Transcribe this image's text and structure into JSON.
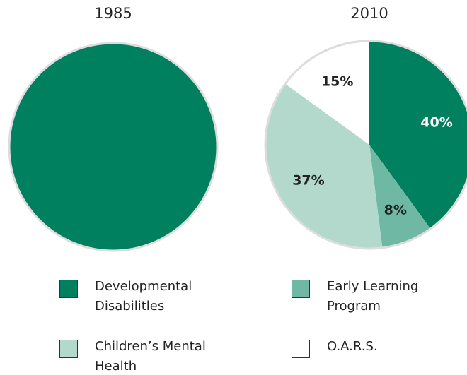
{
  "legend": {
    "items": [
      {
        "name": "Developmental Disabilitles",
        "color": "#00805f"
      },
      {
        "name": "Early Learning Program",
        "color": "#6fb8a3"
      },
      {
        "name": "Children’s Mental Health",
        "color": "#b3d9cc"
      },
      {
        "name": "O.A.R.S.",
        "color": "#ffffff"
      }
    ]
  },
  "chart_data": [
    {
      "type": "pie",
      "title": "1985",
      "values": [
        100,
        0,
        0,
        0
      ]
    },
    {
      "type": "pie",
      "title": "2010",
      "values": [
        40,
        8,
        37,
        15
      ],
      "value_labels": [
        "40%",
        "8%",
        "37%",
        "15%"
      ]
    }
  ]
}
